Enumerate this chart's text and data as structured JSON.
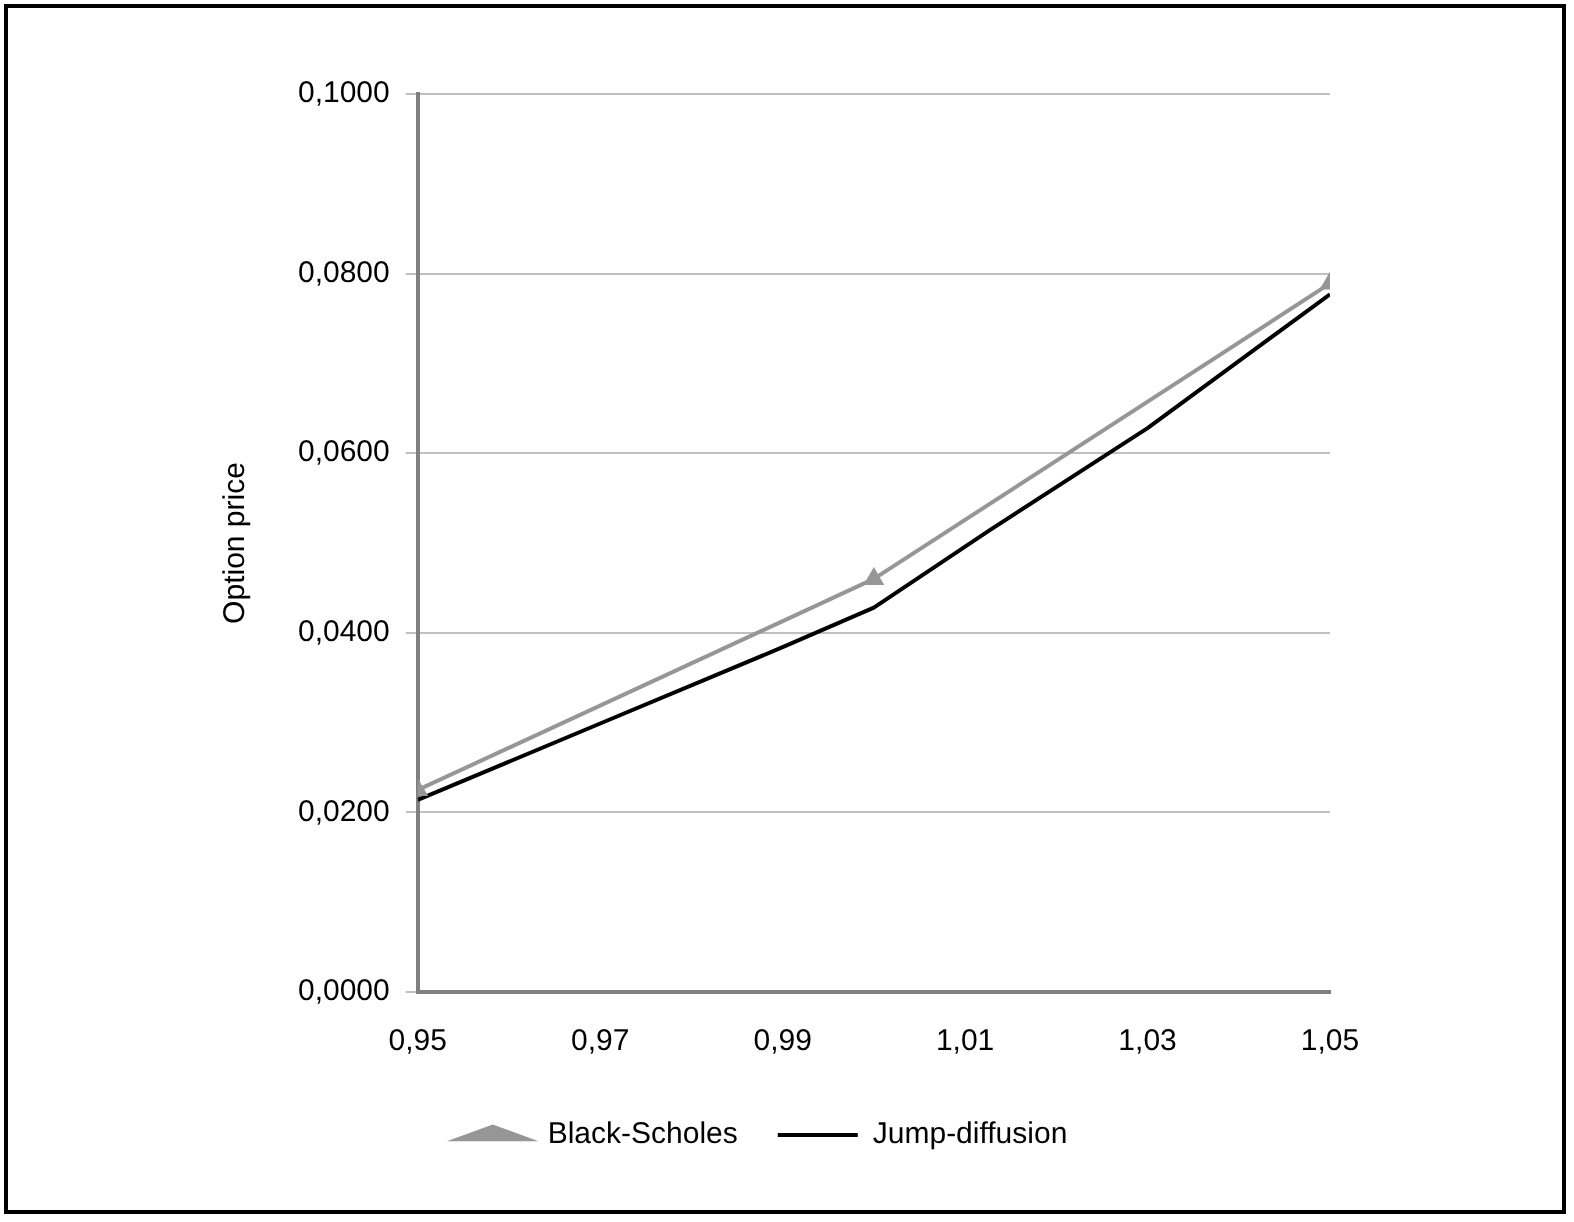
{
  "chart_data": {
    "type": "line",
    "ylabel": "Option price",
    "series": [
      {
        "name": "Black-Scholes",
        "color": "#969696",
        "marker": "triangle",
        "x": [
          0.95,
          1.0,
          1.05
        ],
        "values": [
          0.0225,
          0.046,
          0.0789
        ]
      },
      {
        "name": "Jump-diffusion",
        "color": "#000000",
        "marker": "none",
        "x": [
          0.95,
          0.97,
          0.99,
          1.0,
          1.0125,
          1.03,
          1.05
        ],
        "values": [
          0.0214,
          0.0299,
          0.0384,
          0.0428,
          0.0513,
          0.0628,
          0.0777
        ]
      }
    ],
    "xlim": [
      0.95,
      1.05
    ],
    "xticks": [
      {
        "value": 0.95,
        "label": "0,95"
      },
      {
        "value": 0.97,
        "label": "0,97"
      },
      {
        "value": 0.99,
        "label": "0,99"
      },
      {
        "value": 1.01,
        "label": "1,01"
      },
      {
        "value": 1.03,
        "label": "1,03"
      },
      {
        "value": 1.05,
        "label": "1,05"
      }
    ],
    "ylim": [
      0,
      0.1
    ],
    "yticks": [
      {
        "value": 0,
        "label": "0,0000"
      },
      {
        "value": 0.02,
        "label": "0,0200"
      },
      {
        "value": 0.04,
        "label": "0,0400"
      },
      {
        "value": 0.06,
        "label": "0,0600"
      },
      {
        "value": 0.08,
        "label": "0,0800"
      },
      {
        "value": 0.1,
        "label": "0,1000"
      }
    ],
    "grid": "y",
    "legend": "bottom",
    "line_style": "solid"
  }
}
